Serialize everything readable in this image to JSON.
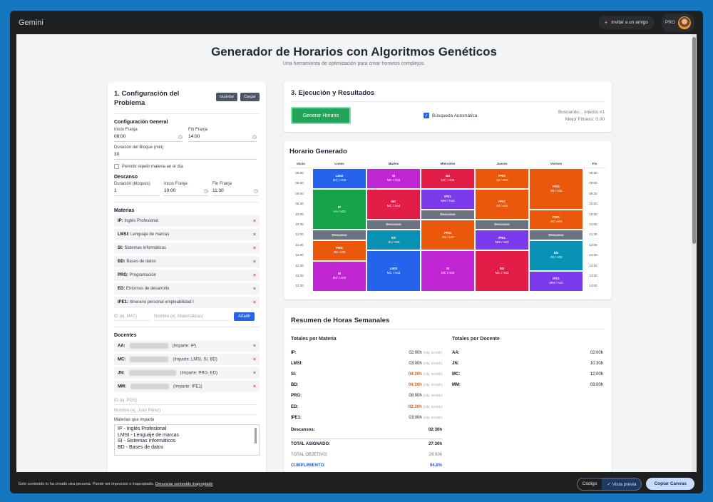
{
  "app": {
    "brand": "Gemini",
    "invite_label": "Invitar a un amigo",
    "pro_label": "PRO"
  },
  "page": {
    "title": "Generador de Horarios con Algoritmos Genéticos",
    "subtitle": "Una herramienta de optimización para crear horarios complejos."
  },
  "config": {
    "title": "1. Configuración del Problema",
    "save_label": "Guardar",
    "load_label": "Cargar",
    "general_title": "Configuración General",
    "start_label": "Inicio Franja",
    "start_value": "08:00",
    "end_label": "Fin Franja",
    "end_value": "14:00",
    "block_label": "Duración del Bloque (min)",
    "block_value": "30",
    "repeat_label": "Permitir repetir materia en el día",
    "break_title": "Descanso",
    "break_dur_label": "Duración (bloques)",
    "break_dur_value": "1",
    "break_start_label": "Inicio Franja",
    "break_start_value": "10:00",
    "break_end_label": "Fin Franja",
    "break_end_value": "11:30",
    "subjects_title": "Materias",
    "subjects": [
      {
        "code": "IP:",
        "name": "Inglés Profesional"
      },
      {
        "code": "LMSI:",
        "name": "Lenguaje de marcas"
      },
      {
        "code": "SI:",
        "name": "Sistemas informáticos"
      },
      {
        "code": "BD:",
        "name": "Bases de datos"
      },
      {
        "code": "PRG:",
        "name": "Programación"
      },
      {
        "code": "ED:",
        "name": "Entornos de desarrollo"
      },
      {
        "code": "IPE1:",
        "name": "Itinerario personal empleabilidad I"
      }
    ],
    "id_placeholder": "ID (ej. MAT)",
    "name_placeholder": "Nombre (ej. Matemáticas)",
    "add_label": "Añadir",
    "teachers_title": "Docentes",
    "teachers": [
      {
        "code": "AA:",
        "subjects": "(Imparte: IP)"
      },
      {
        "code": "MC:",
        "subjects": "(Imparte: LMSI, SI, BD)"
      },
      {
        "code": "JN:",
        "subjects": "(Imparte: PRG, ED)"
      },
      {
        "code": "MM:",
        "subjects": "(Imparte: IPE1)"
      }
    ],
    "teacher_id_placeholder": "ID (ej. PDS)",
    "teacher_name_placeholder": "Nombre (ej. Juan Pérez)",
    "teaches_label": "Materias que imparte",
    "teaches_options": [
      "IP - Inglés Profesional",
      "LMSI - Lenguaje de marcas",
      "SI - Sistemas informáticos",
      "BD - Bases de datos"
    ]
  },
  "exec": {
    "title": "3. Ejecución y Resultados",
    "generate_label": "Generar Horario",
    "auto_label": "Búsqueda Automática",
    "status_line1": "Buscando... Intento #1",
    "status_line2": "Mejor Fitness: 0.00"
  },
  "schedule": {
    "title": "Horario Generado",
    "headers": [
      "Inicio",
      "Lunes",
      "Martes",
      "Miércoles",
      "Jueves",
      "Viernes",
      "Fin"
    ],
    "start_times": [
      "08:00",
      "08:30",
      "09:00",
      "09:30",
      "10:00",
      "10:30",
      "11:00",
      "11:30",
      "12:00",
      "12:30",
      "13:00",
      "13:30"
    ],
    "end_times": [
      "08:30",
      "09:00",
      "09:30",
      "10:00",
      "10:30",
      "11:00",
      "11:30",
      "12:00",
      "12:30",
      "13:00",
      "13:30",
      "14:00"
    ],
    "blocks": [
      {
        "day": 0,
        "row": 0,
        "span": 2,
        "name": "LMSI",
        "who": "MC / A03",
        "color": "#2563eb"
      },
      {
        "day": 0,
        "row": 2,
        "span": 4,
        "name": "IP",
        "who": "AA / A03",
        "color": "#16a34a"
      },
      {
        "day": 0,
        "row": 6,
        "span": 1,
        "name": "Descanso",
        "who": "",
        "color": "#6b7280"
      },
      {
        "day": 0,
        "row": 7,
        "span": 2,
        "name": "PRG",
        "who": "JN / A03",
        "color": "#ea580c"
      },
      {
        "day": 0,
        "row": 9,
        "span": 3,
        "name": "SI",
        "who": "MC / A03",
        "color": "#c026d3"
      },
      {
        "day": 1,
        "row": 0,
        "span": 2,
        "name": "SI",
        "who": "MC / A03",
        "color": "#c026d3"
      },
      {
        "day": 1,
        "row": 2,
        "span": 3,
        "name": "BD",
        "who": "MC / A03",
        "color": "#e11d48"
      },
      {
        "day": 1,
        "row": 5,
        "span": 1,
        "name": "Descanso",
        "who": "",
        "color": "#6b7280"
      },
      {
        "day": 1,
        "row": 6,
        "span": 2,
        "name": "ED",
        "who": "JN / A03",
        "color": "#0891b2"
      },
      {
        "day": 1,
        "row": 8,
        "span": 4,
        "name": "LMSI",
        "who": "MC / A03",
        "color": "#2563eb"
      },
      {
        "day": 2,
        "row": 0,
        "span": 2,
        "name": "BD",
        "who": "MC / A03",
        "color": "#e11d48"
      },
      {
        "day": 2,
        "row": 2,
        "span": 2,
        "name": "IPE1",
        "who": "MM / A03",
        "color": "#7c3aed"
      },
      {
        "day": 2,
        "row": 4,
        "span": 1,
        "name": "Descanso",
        "who": "",
        "color": "#6b7280"
      },
      {
        "day": 2,
        "row": 5,
        "span": 3,
        "name": "PRG",
        "who": "JN / A03",
        "color": "#ea580c"
      },
      {
        "day": 2,
        "row": 8,
        "span": 4,
        "name": "SI",
        "who": "MC / A03",
        "color": "#c026d3"
      },
      {
        "day": 3,
        "row": 0,
        "span": 2,
        "name": "PRG",
        "who": "JN / A03",
        "color": "#ea580c"
      },
      {
        "day": 3,
        "row": 2,
        "span": 3,
        "name": "PRG",
        "who": "JN / A03",
        "color": "#ea580c"
      },
      {
        "day": 3,
        "row": 5,
        "span": 1,
        "name": "Descanso",
        "who": "",
        "color": "#6b7280"
      },
      {
        "day": 3,
        "row": 6,
        "span": 2,
        "name": "IPE1",
        "who": "MM / A03",
        "color": "#7c3aed"
      },
      {
        "day": 3,
        "row": 8,
        "span": 4,
        "name": "BD",
        "who": "MC / A03",
        "color": "#e11d48"
      },
      {
        "day": 4,
        "row": 0,
        "span": 4,
        "name": "PRG",
        "who": "JN / A03",
        "color": "#ea580c"
      },
      {
        "day": 4,
        "row": 4,
        "span": 2,
        "name": "PRG",
        "who": "JN / A03",
        "color": "#ea580c"
      },
      {
        "day": 4,
        "row": 6,
        "span": 1,
        "name": "Descanso",
        "who": "",
        "color": "#6b7280"
      },
      {
        "day": 4,
        "row": 7,
        "span": 3,
        "name": "ED",
        "who": "JN / A03",
        "color": "#0891b2"
      },
      {
        "day": 4,
        "row": 10,
        "span": 2,
        "name": "IPE1",
        "who": "MM / A03",
        "color": "#7c3aed"
      }
    ]
  },
  "summary": {
    "title": "Resumen de Horas Semanales",
    "by_subject_title": "Totales por Materia",
    "by_subject": [
      {
        "k": "IP:",
        "v": "02:00h",
        "obj": "(Obj: 02:00h)",
        "warn": false
      },
      {
        "k": "LMSI:",
        "v": "03:00h",
        "obj": "(Obj: 03:00h)",
        "warn": false
      },
      {
        "k": "SI:",
        "v": "04:30h",
        "obj": "(Obj: 05:00h)",
        "warn": true
      },
      {
        "k": "BD:",
        "v": "04:30h",
        "obj": "(Obj: 05:00h)",
        "warn": true
      },
      {
        "k": "PRG:",
        "v": "08:00h",
        "obj": "(Obj: 08:00h)",
        "warn": false
      },
      {
        "k": "ED:",
        "v": "02:30h",
        "obj": "(Obj: 03:00h)",
        "warn": true
      },
      {
        "k": "IPE1:",
        "v": "03:00h",
        "obj": "(Obj: 03:00h)",
        "warn": false
      }
    ],
    "breaks_label": "Descansos:",
    "breaks_value": "02:30h",
    "assigned_label": "TOTAL ASIGNADO:",
    "assigned_value": "27:30h",
    "target_label": "TOTAL OBJETIVO:",
    "target_value": "29:00h",
    "compliance_label": "CUMPLIMIENTO:",
    "compliance_value": "94.8%",
    "by_teacher_title": "Totales por Docente",
    "by_teacher": [
      {
        "k": "AA:",
        "v": "02:00h"
      },
      {
        "k": "JN:",
        "v": "10:30h"
      },
      {
        "k": "MC:",
        "v": "12:00h"
      },
      {
        "k": "MM:",
        "v": "03:00h"
      }
    ]
  },
  "footer": {
    "notice": "Este contenido lo ha creado otra persona. Puede ser impreciso o inapropiado.",
    "report_link": "Denunciar contenido inapropiado",
    "code_label": "Código",
    "preview_label": "Vista previa",
    "copy_label": "Copiar Canvas"
  }
}
